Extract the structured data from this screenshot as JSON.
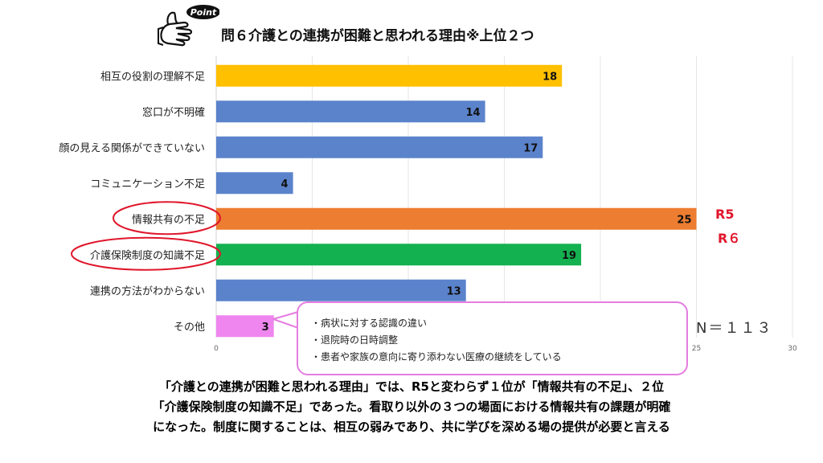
{
  "title": "問６介護との連携が困難と思われる理由※上位２つ",
  "point_badge": "Point",
  "chart_data": {
    "type": "bar",
    "orientation": "horizontal",
    "categories": [
      "相互の役割の理解不足",
      "窓口が不明確",
      "顔の見える関係ができていない",
      "コミュニケーション不足",
      "情報共有の不足",
      "介護保険制度の知識不足",
      "連携の方法がわからない",
      "その他"
    ],
    "values": [
      18,
      14,
      17,
      4,
      25,
      19,
      13,
      3
    ],
    "bar_colors": [
      "#ffc000",
      "#5b83cc",
      "#5b83cc",
      "#5b83cc",
      "#ed7d31",
      "#14b150",
      "#5b83cc",
      "#ef85ef"
    ],
    "x_ticks": [
      0,
      25,
      30
    ],
    "xlim": [
      0,
      30
    ],
    "highlighted": [
      "情報共有の不足",
      "介護保険制度の知識不足"
    ],
    "annotations": [
      "R5",
      "R６"
    ]
  },
  "callout": {
    "border_color": "#e57de0",
    "lines": [
      "・病状に対する認識の違い",
      "・退院時の日時調整",
      "・患者や家族の意向に寄り添わない医療の継続をしている"
    ]
  },
  "n_label": "N＝１１３",
  "summary": [
    "「介護との連携が困難と思われる理由」では、R5と変わらず１位が「情報共有の不足」、２位",
    "「介護保険制度の知識不足」であった。看取り以外の３つの場面における情報共有の課題が明確",
    "になった。制度に関することは、相互の弱みであり、共に学びを深める場の提供が必要と言える"
  ]
}
